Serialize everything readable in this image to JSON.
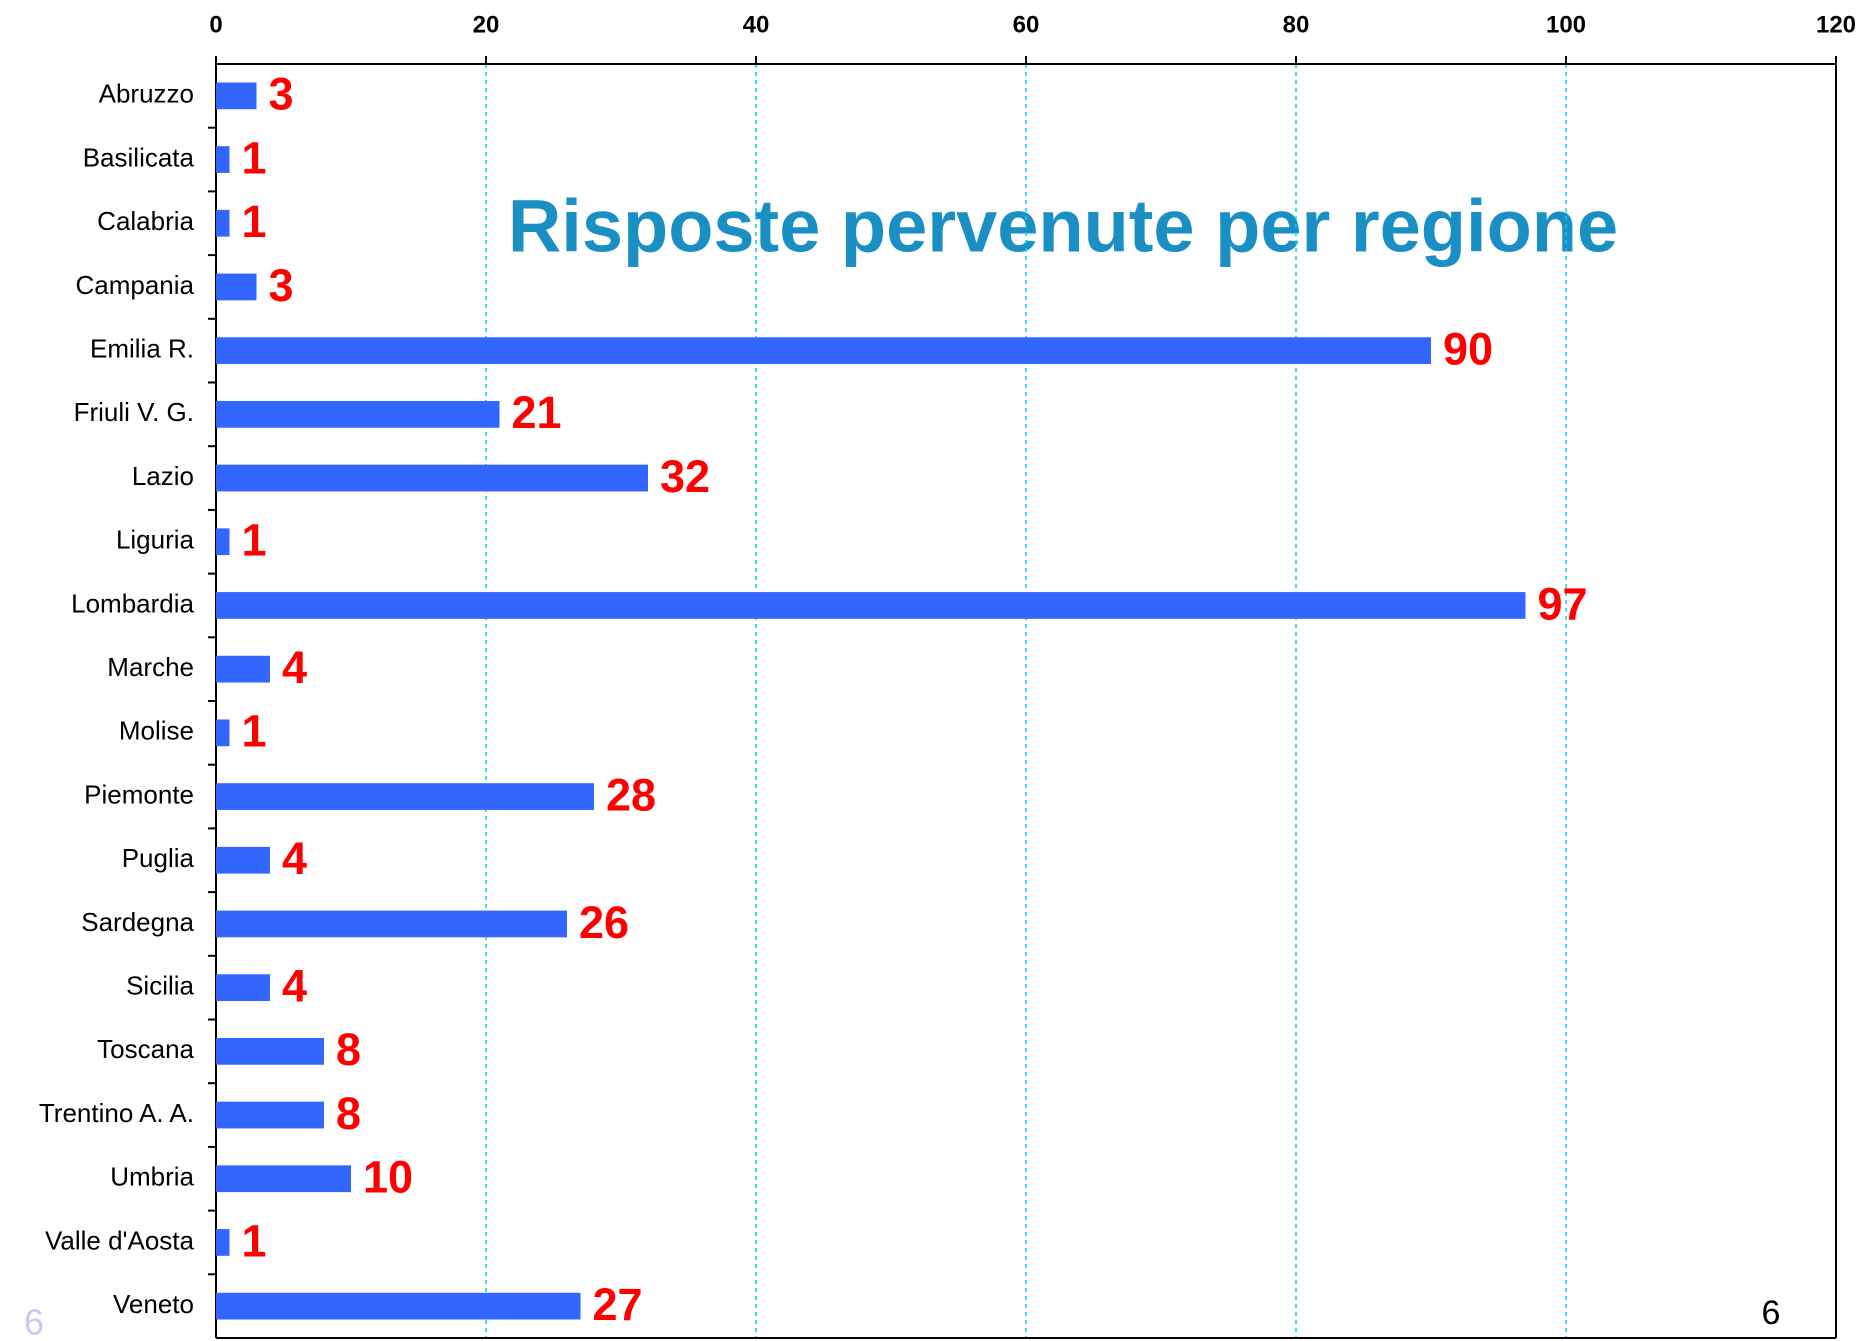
{
  "chart_data": {
    "type": "bar",
    "orientation": "horizontal",
    "title": "Risposte pervenute per regione",
    "categories": [
      "Abruzzo",
      "Basilicata",
      "Calabria",
      "Campania",
      "Emilia R.",
      "Friuli V. G.",
      "Lazio",
      "Liguria",
      "Lombardia",
      "Marche",
      "Molise",
      "Piemonte",
      "Puglia",
      "Sardegna",
      "Sicilia",
      "Toscana",
      "Trentino A. A.",
      "Umbria",
      "Valle d'Aosta",
      "Veneto"
    ],
    "values": [
      3,
      1,
      1,
      3,
      90,
      21,
      32,
      1,
      97,
      4,
      1,
      28,
      4,
      26,
      4,
      8,
      8,
      10,
      1,
      27
    ],
    "color": "#3366ff",
    "label_color": "#ff0000",
    "xlim": [
      0,
      120
    ],
    "xticks": [
      0,
      20,
      40,
      60,
      80,
      100,
      120
    ],
    "grid": true,
    "annotations": [
      "6",
      "6"
    ]
  }
}
